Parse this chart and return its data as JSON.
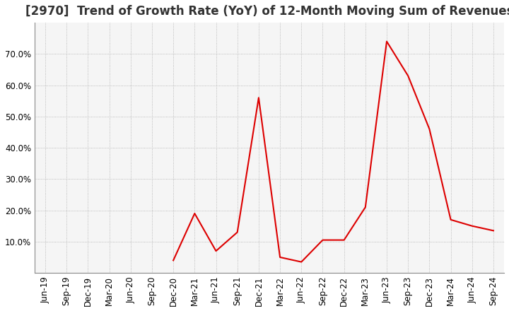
{
  "title": "[2970]  Trend of Growth Rate (YoY) of 12-Month Moving Sum of Revenues",
  "x_labels": [
    "Jun-19",
    "Sep-19",
    "Dec-19",
    "Mar-20",
    "Jun-20",
    "Sep-20",
    "Dec-20",
    "Mar-21",
    "Jun-21",
    "Sep-21",
    "Dec-21",
    "Mar-22",
    "Jun-22",
    "Sep-22",
    "Dec-22",
    "Mar-23",
    "Jun-23",
    "Sep-23",
    "Dec-23",
    "Mar-24",
    "Jun-24",
    "Sep-24"
  ],
  "values": [
    null,
    null,
    null,
    null,
    null,
    null,
    4.0,
    19.0,
    7.0,
    13.0,
    56.0,
    5.0,
    3.5,
    10.5,
    10.5,
    21.0,
    74.0,
    63.0,
    46.0,
    17.0,
    15.0,
    13.5
  ],
  "line_color": "#dd0000",
  "background_color": "#ffffff",
  "plot_bg_color": "#f5f5f5",
  "grid_color": "#aaaaaa",
  "title_color": "#333333",
  "ylim_min": 0,
  "ylim_max": 80,
  "yticks": [
    10,
    20,
    30,
    40,
    50,
    60,
    70
  ],
  "title_fontsize": 12,
  "tick_fontsize": 8.5
}
